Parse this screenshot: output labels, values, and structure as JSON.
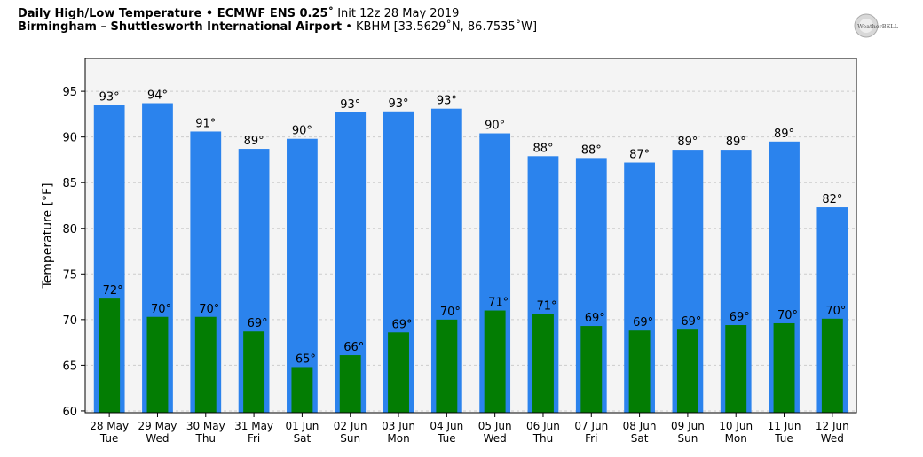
{
  "header": {
    "line1_bold": "Daily High/Low Temperature • ECMWF ENS 0.25˚",
    "line1_rest": " Init 12z 28 May 2019",
    "line2_bold": "Birmingham – Shuttlesworth International Airport",
    "line2_rest": " • KBHM [33.5629˚N, 86.7535˚W]",
    "logo_text": "WeatherBELL",
    "logo_icon": "weatherbell-logo-icon"
  },
  "chart_data": {
    "type": "bar",
    "ylabel": "Temperature [°F]",
    "ylim": [
      59.8,
      98.6
    ],
    "yticks": [
      60,
      65,
      70,
      75,
      80,
      85,
      90,
      95
    ],
    "grid": true,
    "categories": [
      {
        "date": "28 May",
        "day": "Tue"
      },
      {
        "date": "29 May",
        "day": "Wed"
      },
      {
        "date": "30 May",
        "day": "Thu"
      },
      {
        "date": "31 May",
        "day": "Fri"
      },
      {
        "date": "01 Jun",
        "day": "Sat"
      },
      {
        "date": "02 Jun",
        "day": "Sun"
      },
      {
        "date": "03 Jun",
        "day": "Mon"
      },
      {
        "date": "04 Jun",
        "day": "Tue"
      },
      {
        "date": "05 Jun",
        "day": "Wed"
      },
      {
        "date": "06 Jun",
        "day": "Thu"
      },
      {
        "date": "07 Jun",
        "day": "Fri"
      },
      {
        "date": "08 Jun",
        "day": "Sat"
      },
      {
        "date": "09 Jun",
        "day": "Sun"
      },
      {
        "date": "10 Jun",
        "day": "Mon"
      },
      {
        "date": "11 Jun",
        "day": "Tue"
      },
      {
        "date": "12 Jun",
        "day": "Wed"
      }
    ],
    "series": [
      {
        "key": "high",
        "color": "#2b83ed",
        "values": [
          93.5,
          93.7,
          90.6,
          88.7,
          89.8,
          92.7,
          92.8,
          93.1,
          90.4,
          87.9,
          87.7,
          87.2,
          88.6,
          88.6,
          89.5,
          82.3
        ],
        "labels": [
          "93°",
          "94°",
          "91°",
          "89°",
          "90°",
          "93°",
          "93°",
          "93°",
          "90°",
          "88°",
          "88°",
          "87°",
          "89°",
          "89°",
          "89°",
          "82°"
        ]
      },
      {
        "key": "low",
        "color": "#037d03",
        "values": [
          72.3,
          70.3,
          70.3,
          68.7,
          64.8,
          66.1,
          68.6,
          70.0,
          71.0,
          70.6,
          69.3,
          68.8,
          68.9,
          69.4,
          69.6,
          70.1
        ],
        "labels": [
          "72°",
          "70°",
          "70°",
          "69°",
          "65°",
          "66°",
          "69°",
          "70°",
          "71°",
          "71°",
          "69°",
          "69°",
          "69°",
          "69°",
          "70°",
          "70°"
        ]
      }
    ]
  }
}
